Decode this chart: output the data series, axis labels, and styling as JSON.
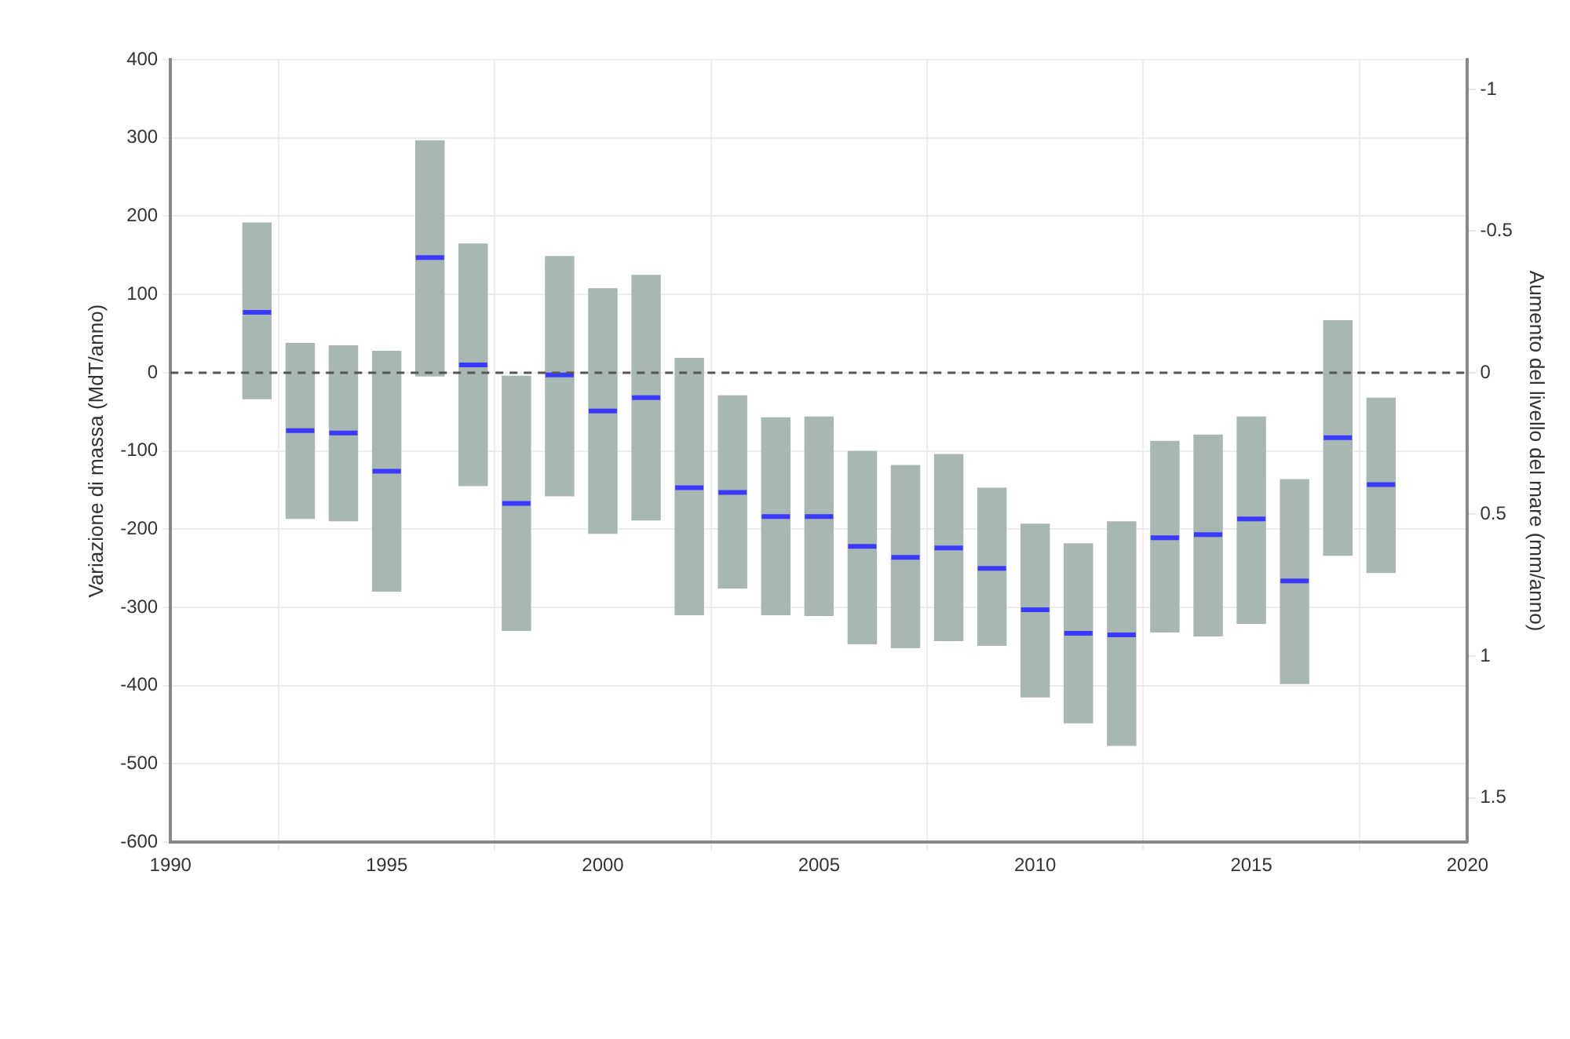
{
  "chart_data": {
    "type": "box",
    "ylabel": "Variazione di massa (MdT/anno)",
    "y2label": "Aumento del livello del mare (mm/anno)",
    "x": [
      1992,
      1993,
      1994,
      1995,
      1996,
      1997,
      1998,
      1999,
      2000,
      2001,
      2002,
      2003,
      2004,
      2005,
      2006,
      2007,
      2008,
      2009,
      2010,
      2011,
      2012,
      2013,
      2014,
      2015,
      2016,
      2017,
      2018
    ],
    "color": "#a9b7b3",
    "boxes": [
      {
        "low": -34,
        "q1": -34,
        "median": 77,
        "q3": 192,
        "high": 192
      },
      {
        "low": -187,
        "q1": -187,
        "median": -74,
        "q3": 38,
        "high": 38
      },
      {
        "low": -190,
        "q1": -190,
        "median": -77,
        "q3": 35,
        "high": 35
      },
      {
        "low": -280,
        "q1": -280,
        "median": -126,
        "q3": 28,
        "high": 28
      },
      {
        "low": -5,
        "q1": -5,
        "median": 147,
        "q3": 297,
        "high": 297
      },
      {
        "low": -145,
        "q1": -145,
        "median": 10,
        "q3": 165,
        "high": 165
      },
      {
        "low": -330,
        "q1": -330,
        "median": -167,
        "q3": -4,
        "high": -4
      },
      {
        "low": -158,
        "q1": -158,
        "median": -3,
        "q3": 149,
        "high": 149
      },
      {
        "low": -206,
        "q1": -206,
        "median": -49,
        "q3": 108,
        "high": 108
      },
      {
        "low": -189,
        "q1": -189,
        "median": -32,
        "q3": 125,
        "high": 125
      },
      {
        "low": -310,
        "q1": -310,
        "median": -147,
        "q3": 19,
        "high": 19
      },
      {
        "low": -276,
        "q1": -276,
        "median": -153,
        "q3": -29,
        "high": -29
      },
      {
        "low": -310,
        "q1": -310,
        "median": -184,
        "q3": -57,
        "high": -57
      },
      {
        "low": -311,
        "q1": -311,
        "median": -184,
        "q3": -56,
        "high": -56
      },
      {
        "low": -347,
        "q1": -347,
        "median": -222,
        "q3": -100,
        "high": -100
      },
      {
        "low": -352,
        "q1": -352,
        "median": -236,
        "q3": -118,
        "high": -118
      },
      {
        "low": -343,
        "q1": -343,
        "median": -224,
        "q3": -104,
        "high": -104
      },
      {
        "low": -349,
        "q1": -349,
        "median": -250,
        "q3": -147,
        "high": -147
      },
      {
        "low": -415,
        "q1": -415,
        "median": -303,
        "q3": -193,
        "high": -193
      },
      {
        "low": -448,
        "q1": -448,
        "median": -333,
        "q3": -218,
        "high": -218
      },
      {
        "low": -477,
        "q1": -477,
        "median": -335,
        "q3": -190,
        "high": -190
      },
      {
        "low": -332,
        "q1": -332,
        "median": -211,
        "q3": -87,
        "high": -87
      },
      {
        "low": -337,
        "q1": -337,
        "median": -207,
        "q3": -79,
        "high": -79
      },
      {
        "low": -321,
        "q1": -321,
        "median": -187,
        "q3": -56,
        "high": -56
      },
      {
        "low": -398,
        "q1": -398,
        "median": -266,
        "q3": -136,
        "high": -136
      },
      {
        "low": -234,
        "q1": -234,
        "median": -83,
        "q3": 67,
        "high": 67
      },
      {
        "low": -256,
        "q1": -256,
        "median": -143,
        "q3": -32,
        "high": -32
      }
    ],
    "xlim": [
      1990,
      2020
    ],
    "xticks": [
      1990,
      1995,
      2000,
      2005,
      2010,
      2015,
      2020
    ],
    "ylim": [
      -600,
      400
    ],
    "yticks": [
      -600,
      -500,
      -400,
      -300,
      -200,
      -100,
      0,
      100,
      200,
      300,
      400
    ],
    "y2lim": [
      1.657,
      -1.105
    ],
    "y2ticks": [
      -1,
      -0.5,
      0,
      0.5,
      1,
      1.5
    ],
    "ref_lines": [
      {
        "axis": "y",
        "value": 0,
        "color": "#555555",
        "line_style": "dashed"
      }
    ],
    "grid": true,
    "legend": false
  }
}
